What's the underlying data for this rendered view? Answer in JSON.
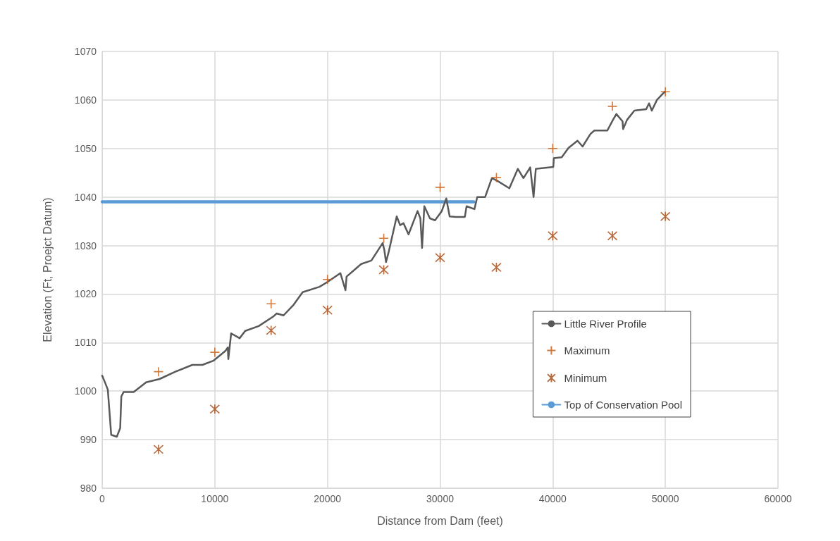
{
  "chart_data": {
    "type": "line",
    "xlabel": "Distance from Dam (feet)",
    "ylabel": "Elevation (Ft, Proejct Datum)",
    "xlim": [
      0,
      60000
    ],
    "xticks": [
      0,
      10000,
      20000,
      30000,
      40000,
      50000,
      60000
    ],
    "ylim": [
      980,
      1070
    ],
    "yticks": [
      980,
      990,
      1000,
      1010,
      1020,
      1030,
      1040,
      1050,
      1060,
      1070
    ],
    "grid": true,
    "legend": "right",
    "series": [
      {
        "name": "Little River Profile",
        "color": "#595959",
        "marker": "none",
        "line_style": "solid",
        "x": [
          0,
          300,
          500,
          650,
          800,
          1300,
          1600,
          1700,
          1900,
          2800,
          3900,
          5100,
          6600,
          8000,
          8900,
          9900,
          10950,
          11150,
          11200,
          11450,
          12200,
          12700,
          13900,
          15150,
          15500,
          16100,
          17000,
          17800,
          19300,
          20000,
          21150,
          21600,
          21700,
          23000,
          23900,
          24900,
          25050,
          25200,
          25450,
          26150,
          26450,
          26750,
          27200,
          28000,
          28250,
          28400,
          28600,
          29100,
          29550,
          30150,
          30550,
          30850,
          31400,
          32200,
          32350,
          33050,
          33300,
          34000,
          34600,
          35100,
          36150,
          36900,
          37400,
          38000,
          38300,
          38500,
          40050,
          40100,
          40800,
          41400,
          42200,
          42650,
          43350,
          43700,
          44850,
          45350,
          45650,
          46200,
          46250,
          46600,
          47250,
          48300,
          48550,
          48800,
          49250,
          49950
        ],
        "values": [
          1003.2,
          1001.5,
          1000.3,
          995.7,
          991,
          990.6,
          992.4,
          998.9,
          999.8,
          999.8,
          1001.8,
          1002.5,
          1004.1,
          1005.4,
          1005.4,
          1006.3,
          1008.3,
          1009,
          1006.6,
          1011.9,
          1010.9,
          1012.4,
          1013.4,
          1015.3,
          1016,
          1015.6,
          1017.8,
          1020.4,
          1021.5,
          1022.5,
          1024.3,
          1020.8,
          1023.6,
          1026.2,
          1026.9,
          1030.5,
          1029.1,
          1026.6,
          1028.8,
          1036,
          1034.2,
          1034.6,
          1032.3,
          1037.1,
          1035.6,
          1029.5,
          1038.1,
          1035.6,
          1035.2,
          1037.1,
          1039.7,
          1036,
          1035.9,
          1035.9,
          1038.1,
          1037.5,
          1040,
          1040,
          1043.9,
          1043.3,
          1041.8,
          1045.8,
          1043.9,
          1046.1,
          1040,
          1045.8,
          1046.2,
          1048,
          1048.2,
          1050.1,
          1051.6,
          1050.4,
          1053,
          1053.7,
          1053.7,
          1055.9,
          1057.1,
          1055.6,
          1054,
          1055.9,
          1057.8,
          1058.1,
          1059.3,
          1057.8,
          1060,
          1061.7
        ]
      },
      {
        "name": "Maximum",
        "type": "scatter",
        "color": "#c55a11",
        "marker": "cross",
        "x": [
          5000,
          10000,
          15000,
          20000,
          25000,
          30000,
          35000,
          40000,
          45300,
          50000
        ],
        "values": [
          1004,
          1008,
          1018,
          1023,
          1031.5,
          1042,
          1044,
          1050,
          1058.7,
          1061.7
        ]
      },
      {
        "name": "Minimum",
        "type": "scatter",
        "color": "#a5460e",
        "marker": "cross",
        "x": [
          5000,
          10000,
          15000,
          20000,
          25000,
          30000,
          35000,
          40000,
          45300,
          50000
        ],
        "values": [
          988,
          996.3,
          1012.5,
          1016.7,
          1025,
          1027.5,
          1025.5,
          1032,
          1032,
          1036
        ]
      },
      {
        "name": "Top of Conservation Pool",
        "color": "#5b9bd5",
        "marker": "none",
        "line_style": "solid",
        "x": [
          0,
          33000
        ],
        "values": [
          1039,
          1039
        ]
      }
    ]
  }
}
